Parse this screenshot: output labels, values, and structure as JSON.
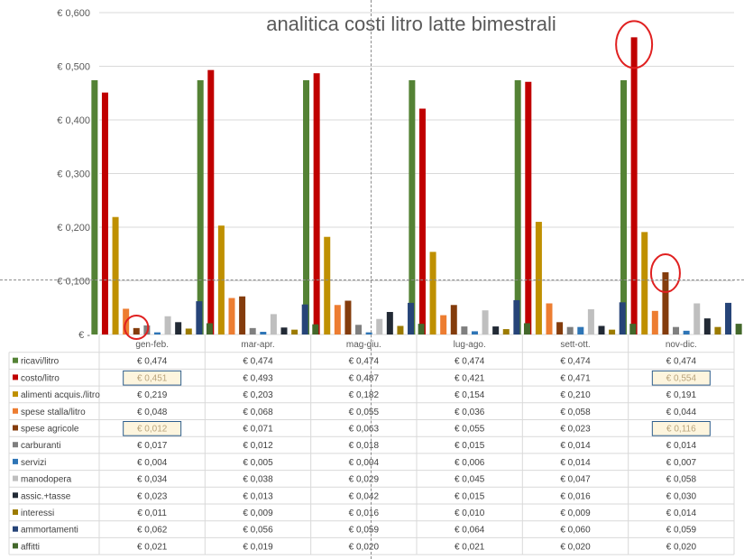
{
  "chart_data": {
    "type": "bar",
    "title": "analitica costi litro latte bimestrali",
    "xlabel": "",
    "ylabel": "",
    "ylim": [
      0,
      0.6
    ],
    "yticks": [
      "€ -",
      "€ 0,100",
      "€ 0,200",
      "€ 0,300",
      "€ 0,400",
      "€ 0,500",
      "€ 0,600"
    ],
    "grid": true,
    "legend_placement": "data-table-left",
    "categories": [
      "gen-feb.",
      "mar-apr.",
      "mag-giu.",
      "lug-ago.",
      "sett-ott.",
      "nov-dic."
    ],
    "series": [
      {
        "name": "ricavi/litro",
        "color": "#548235",
        "values": [
          0.474,
          0.474,
          0.474,
          0.474,
          0.474,
          0.474
        ],
        "labels": [
          "€ 0,474",
          "€ 0,474",
          "€ 0,474",
          "€ 0,474",
          "€ 0,474",
          "€ 0,474"
        ]
      },
      {
        "name": "costo/litro",
        "color": "#c00000",
        "values": [
          0.451,
          0.493,
          0.487,
          0.421,
          0.471,
          0.554
        ],
        "labels": [
          "€ 0,451",
          "€ 0,493",
          "€ 0,487",
          "€ 0,421",
          "€ 0,471",
          "€ 0,554"
        ]
      },
      {
        "name": "alimenti acquis./litro",
        "color": "#bf9000",
        "values": [
          0.219,
          0.203,
          0.182,
          0.154,
          0.21,
          0.191
        ],
        "labels": [
          "€ 0,219",
          "€ 0,203",
          "€ 0,182",
          "€ 0,154",
          "€ 0,210",
          "€ 0,191"
        ]
      },
      {
        "name": "spese stalla/litro",
        "color": "#ed7d31",
        "values": [
          0.048,
          0.068,
          0.055,
          0.036,
          0.058,
          0.044
        ],
        "labels": [
          "€ 0,048",
          "€ 0,068",
          "€ 0,055",
          "€ 0,036",
          "€ 0,058",
          "€ 0,044"
        ]
      },
      {
        "name": "spese agricole",
        "color": "#843c0c",
        "values": [
          0.012,
          0.071,
          0.063,
          0.055,
          0.023,
          0.116
        ],
        "labels": [
          "€ 0,012",
          "€ 0,071",
          "€ 0,063",
          "€ 0,055",
          "€ 0,023",
          "€ 0,116"
        ]
      },
      {
        "name": "carburanti",
        "color": "#7f7f7f",
        "values": [
          0.017,
          0.012,
          0.018,
          0.015,
          0.014,
          0.014
        ],
        "labels": [
          "€ 0,017",
          "€ 0,012",
          "€ 0,018",
          "€ 0,015",
          "€ 0,014",
          "€ 0,014"
        ]
      },
      {
        "name": "servizi",
        "color": "#2e75b6",
        "values": [
          0.004,
          0.005,
          0.004,
          0.006,
          0.014,
          0.007
        ],
        "labels": [
          "€ 0,004",
          "€ 0,005",
          "€ 0,004",
          "€ 0,006",
          "€ 0,014",
          "€ 0,007"
        ]
      },
      {
        "name": "manodopera",
        "color": "#bfbfbf",
        "values": [
          0.034,
          0.038,
          0.029,
          0.045,
          0.047,
          0.058
        ],
        "labels": [
          "€ 0,034",
          "€ 0,038",
          "€ 0,029",
          "€ 0,045",
          "€ 0,047",
          "€ 0,058"
        ]
      },
      {
        "name": "assic.+tasse",
        "color": "#222a35",
        "values": [
          0.023,
          0.013,
          0.042,
          0.015,
          0.016,
          0.03
        ],
        "labels": [
          "€ 0,023",
          "€ 0,013",
          "€ 0,042",
          "€ 0,015",
          "€ 0,016",
          "€ 0,030"
        ]
      },
      {
        "name": "interessi",
        "color": "#9c7b00",
        "values": [
          0.011,
          0.009,
          0.016,
          0.01,
          0.009,
          0.014
        ],
        "labels": [
          "€ 0,011",
          "€ 0,009",
          "€ 0,016",
          "€ 0,010",
          "€ 0,009",
          "€ 0,014"
        ]
      },
      {
        "name": "ammortamenti",
        "color": "#264478",
        "values": [
          0.062,
          0.056,
          0.059,
          0.064,
          0.06,
          0.059
        ],
        "labels": [
          "€ 0,062",
          "€ 0,056",
          "€ 0,059",
          "€ 0,064",
          "€ 0,060",
          "€ 0,059"
        ]
      },
      {
        "name": "affitti",
        "color": "#43682b",
        "values": [
          0.021,
          0.019,
          0.02,
          0.021,
          0.02,
          0.02
        ],
        "labels": [
          "€ 0,021",
          "€ 0,019",
          "€ 0,020",
          "€ 0,021",
          "€ 0,020",
          "€ 0,020"
        ]
      }
    ],
    "highlighted_cells": [
      {
        "series": "costo/litro",
        "category": "gen-feb."
      },
      {
        "series": "costo/litro",
        "category": "nov-dic."
      },
      {
        "series": "spese agricole",
        "category": "gen-feb."
      },
      {
        "series": "spese agricole",
        "category": "nov-dic."
      }
    ],
    "circled_bars": [
      {
        "series": "spese agricole",
        "category": "gen-feb."
      },
      {
        "series": "costo/litro",
        "category": "nov-dic."
      },
      {
        "series": "spese agricole",
        "category": "nov-dic."
      }
    ],
    "colors": {
      "highlight_fill": "#fdf5de",
      "highlight_border": "#2e5e8c",
      "circle": "#e02020"
    }
  }
}
